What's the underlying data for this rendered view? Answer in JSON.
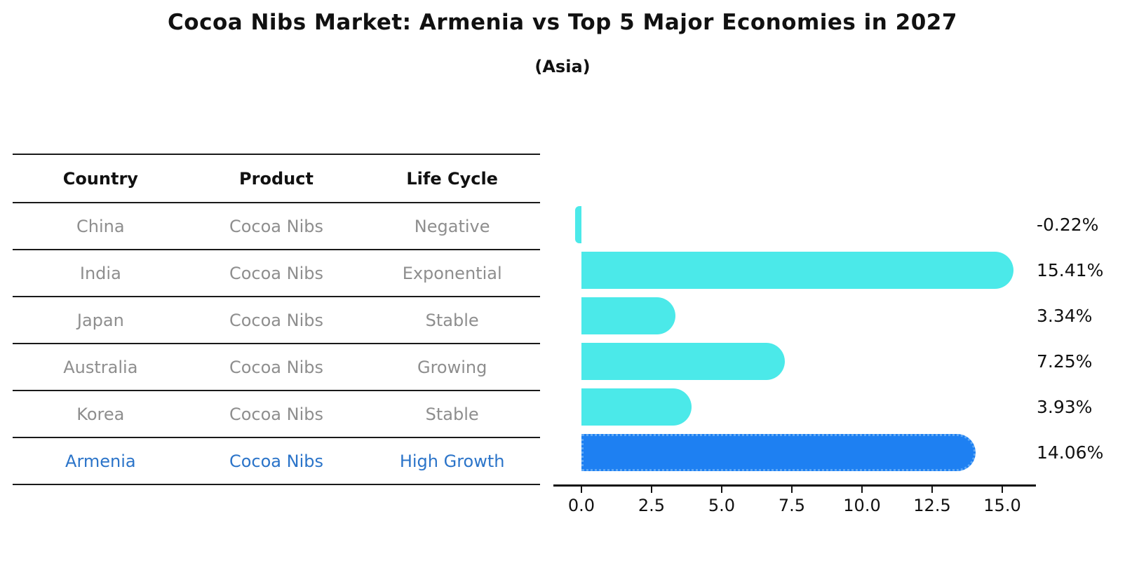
{
  "title": "Cocoa Nibs Market: Armenia vs Top 5 Major Economies in 2027",
  "subtitle": "(Asia)",
  "table": {
    "headers": [
      "Country",
      "Product",
      "Life Cycle"
    ],
    "rows": [
      {
        "country": "China",
        "product": "Cocoa Nibs",
        "life_cycle": "Negative",
        "highlight": false
      },
      {
        "country": "India",
        "product": "Cocoa Nibs",
        "life_cycle": "Exponential",
        "highlight": false
      },
      {
        "country": "Japan",
        "product": "Cocoa Nibs",
        "life_cycle": "Stable",
        "highlight": false
      },
      {
        "country": "Australia",
        "product": "Cocoa Nibs",
        "life_cycle": "Growing",
        "highlight": false
      },
      {
        "country": "Korea",
        "product": "Cocoa Nibs",
        "life_cycle": "Stable",
        "highlight": false
      },
      {
        "country": "Armenia",
        "product": "Cocoa Nibs",
        "life_cycle": "High Growth",
        "highlight": true
      }
    ]
  },
  "chart_data": {
    "type": "bar",
    "orientation": "horizontal",
    "title": "Cocoa Nibs Market: Armenia vs Top 5 Major Economies in 2027",
    "subtitle": "(Asia)",
    "categories": [
      "China",
      "India",
      "Japan",
      "Australia",
      "Korea",
      "Armenia"
    ],
    "values": [
      -0.22,
      15.41,
      3.34,
      7.25,
      3.93,
      14.06
    ],
    "value_labels": [
      "-0.22%",
      "15.41%",
      "3.34%",
      "7.25%",
      "3.93%",
      "14.06%"
    ],
    "highlight_index": 5,
    "xlabel": "",
    "ylabel": "",
    "xlim": [
      -1.0,
      16.2
    ],
    "x_ticks": [
      0,
      2.5,
      5,
      7.5,
      10,
      12.5,
      15
    ],
    "x_tick_labels": [
      "0.0",
      "2.5",
      "5.0",
      "7.5",
      "10.0",
      "12.5",
      "15.0"
    ],
    "grid": false,
    "legend": "none",
    "bar_color": "#4be9e9",
    "highlight_bar_color": "#1e80f2",
    "highlight_text_color": "#2b74c9",
    "value_label_color": "#111111",
    "table_text_color": "#8e8e8e"
  }
}
